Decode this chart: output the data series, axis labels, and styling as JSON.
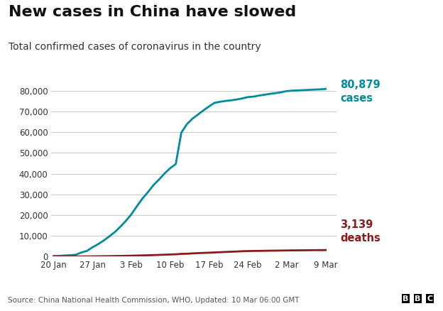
{
  "title": "New cases in China have slowed",
  "subtitle": "Total confirmed cases of coronavirus in the country",
  "source": "Source: China National Health Commission, WHO, Updated: 10 Mar 06:00 GMT",
  "cases_label_line1": "80,879",
  "cases_label_line2": "cases",
  "deaths_label_line1": "3,139",
  "deaths_label_line2": "deaths",
  "cases_color": "#008B9E",
  "deaths_color": "#8B1A1A",
  "background_color": "#FFFFFF",
  "grid_color": "#CCCCCC",
  "x_labels": [
    "20 Jan",
    "27 Jan",
    "3 Feb",
    "10 Feb",
    "17 Feb",
    "24 Feb",
    "2 Mar",
    "9 Mar"
  ],
  "x_positions": [
    0,
    7,
    14,
    21,
    28,
    35,
    42,
    49
  ],
  "cases_data": [
    [
      0,
      278
    ],
    [
      1,
      326
    ],
    [
      2,
      547
    ],
    [
      3,
      639
    ],
    [
      4,
      916
    ],
    [
      5,
      1979
    ],
    [
      6,
      2744
    ],
    [
      7,
      4515
    ],
    [
      8,
      5974
    ],
    [
      9,
      7711
    ],
    [
      10,
      9692
    ],
    [
      11,
      11791
    ],
    [
      12,
      14380
    ],
    [
      13,
      17205
    ],
    [
      14,
      20438
    ],
    [
      15,
      24324
    ],
    [
      16,
      28018
    ],
    [
      17,
      31161
    ],
    [
      18,
      34546
    ],
    [
      19,
      37198
    ],
    [
      20,
      40171
    ],
    [
      21,
      42638
    ],
    [
      22,
      44653
    ],
    [
      23,
      59804
    ],
    [
      24,
      63851
    ],
    [
      25,
      66492
    ],
    [
      26,
      68500
    ],
    [
      27,
      70548
    ],
    [
      28,
      72436
    ],
    [
      29,
      74185
    ],
    [
      30,
      74675
    ],
    [
      31,
      75077
    ],
    [
      32,
      75400
    ],
    [
      33,
      75770
    ],
    [
      34,
      76288
    ],
    [
      35,
      76936
    ],
    [
      36,
      77150
    ],
    [
      37,
      77658
    ],
    [
      38,
      78064
    ],
    [
      39,
      78497
    ],
    [
      40,
      78824
    ],
    [
      41,
      79251
    ],
    [
      42,
      79824
    ],
    [
      43,
      80026
    ],
    [
      44,
      80151
    ],
    [
      45,
      80270
    ],
    [
      46,
      80409
    ],
    [
      47,
      80552
    ],
    [
      48,
      80651
    ],
    [
      49,
      80879
    ]
  ],
  "deaths_data": [
    [
      0,
      6
    ],
    [
      1,
      9
    ],
    [
      2,
      17
    ],
    [
      3,
      18
    ],
    [
      4,
      26
    ],
    [
      5,
      56
    ],
    [
      6,
      80
    ],
    [
      7,
      106
    ],
    [
      8,
      132
    ],
    [
      9,
      170
    ],
    [
      10,
      213
    ],
    [
      11,
      259
    ],
    [
      12,
      304
    ],
    [
      13,
      361
    ],
    [
      14,
      425
    ],
    [
      15,
      490
    ],
    [
      16,
      563
    ],
    [
      17,
      637
    ],
    [
      18,
      722
    ],
    [
      19,
      811
    ],
    [
      20,
      908
    ],
    [
      21,
      1013
    ],
    [
      22,
      1113
    ],
    [
      23,
      1310
    ],
    [
      24,
      1380
    ],
    [
      25,
      1523
    ],
    [
      26,
      1665
    ],
    [
      27,
      1770
    ],
    [
      28,
      1868
    ],
    [
      29,
      2004
    ],
    [
      30,
      2118
    ],
    [
      31,
      2236
    ],
    [
      32,
      2345
    ],
    [
      33,
      2442
    ],
    [
      34,
      2592
    ],
    [
      35,
      2663
    ],
    [
      36,
      2715
    ],
    [
      37,
      2744
    ],
    [
      38,
      2788
    ],
    [
      39,
      2835
    ],
    [
      40,
      2870
    ],
    [
      41,
      2912
    ],
    [
      42,
      2943
    ],
    [
      43,
      2984
    ],
    [
      44,
      3012
    ],
    [
      45,
      3042
    ],
    [
      46,
      3070
    ],
    [
      47,
      3100
    ],
    [
      48,
      3120
    ],
    [
      49,
      3139
    ]
  ],
  "ylim": [
    0,
    90000
  ],
  "yticks": [
    0,
    10000,
    20000,
    30000,
    40000,
    50000,
    60000,
    70000,
    80000
  ],
  "title_fontsize": 16,
  "subtitle_fontsize": 10,
  "tick_fontsize": 8.5,
  "annotation_fontsize": 10.5,
  "source_fontsize": 7.5
}
